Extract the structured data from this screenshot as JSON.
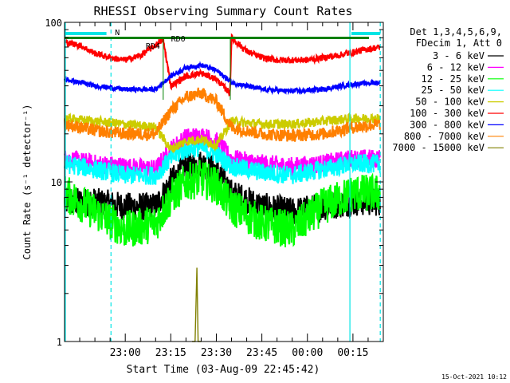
{
  "chart_data": {
    "type": "line",
    "title": "RHESSI Observing Summary Count Rates",
    "xlabel": "Start Time (03-Aug-09 22:45:42)",
    "ylabel": "Count Rate (s⁻¹ detector⁻¹)",
    "yscale": "log",
    "ylim": [
      1,
      100
    ],
    "xlim": [
      -10,
      95
    ],
    "x_units": "minutes after 22:50",
    "y_ticks": [
      1,
      10,
      100
    ],
    "y_tick_labels": [
      "1",
      "10",
      "100"
    ],
    "x_ticks": [
      10,
      25,
      40,
      55,
      70,
      85
    ],
    "x_tick_labels": [
      "23:00",
      "23:15",
      "23:30",
      "23:45",
      "00:00",
      "00:15"
    ],
    "legend_header": [
      "Det 1,3,4,5,6,9,",
      "FDecim 1, Att 0"
    ],
    "annotations": {
      "top_bar_label": "N",
      "rd_labels": [
        "RD4",
        "RD0"
      ]
    },
    "footer": "15-Oct-2021 10:12",
    "series": [
      {
        "name": "3 - 6 keV",
        "color": "#000000",
        "x": [
          -10,
          0,
          10,
          20,
          25,
          30,
          35,
          40,
          45,
          55,
          65,
          75,
          85,
          94
        ],
        "y": [
          7.5,
          7.5,
          7,
          7,
          10,
          12.5,
          13,
          12,
          8.5,
          7,
          6.5,
          7,
          7.5,
          7.5
        ]
      },
      {
        "name": "6 - 12 keV",
        "color": "#ff00ff",
        "x": [
          -10,
          0,
          10,
          20,
          25,
          30,
          35,
          40,
          45,
          55,
          65,
          75,
          85,
          94
        ],
        "y": [
          14,
          13,
          12.5,
          12,
          16,
          19,
          19.5,
          18,
          14,
          13,
          12.5,
          13,
          14,
          14
        ]
      },
      {
        "name": "12 - 25 keV",
        "color": "#00ff00",
        "x": [
          -10,
          0,
          10,
          20,
          25,
          30,
          35,
          40,
          45,
          55,
          65,
          75,
          85,
          94
        ],
        "y": [
          8.5,
          6.5,
          5,
          5.5,
          8,
          10,
          10.5,
          9.5,
          7,
          5.5,
          5,
          7,
          8.5,
          8.5
        ]
      },
      {
        "name": "25 - 50 keV",
        "color": "#00ffff",
        "x": [
          -10,
          0,
          10,
          20,
          25,
          30,
          35,
          40,
          45,
          55,
          65,
          75,
          85,
          94
        ],
        "y": [
          13,
          12,
          11,
          11,
          14,
          16,
          16.5,
          15,
          12.5,
          11.5,
          11,
          12,
          13,
          13
        ]
      },
      {
        "name": "50 - 100 keV",
        "color": "#cccc00",
        "x": [
          -10,
          0,
          10,
          20,
          25,
          30,
          35,
          40,
          45,
          55,
          65,
          75,
          85,
          94
        ],
        "y": [
          25,
          24,
          23,
          22,
          16,
          18,
          18.5,
          17,
          24,
          23,
          23,
          24,
          25,
          25
        ]
      },
      {
        "name": "100 - 300 keV",
        "color": "#ff0000",
        "x": [
          -10,
          -5,
          0,
          5,
          10,
          15,
          20,
          22.5,
          25,
          30,
          35,
          40,
          44.5,
          45,
          50,
          55,
          60,
          70,
          80,
          90,
          94
        ],
        "y": [
          75,
          72,
          64,
          60,
          58,
          62,
          72,
          78,
          40,
          46,
          48,
          44,
          36,
          80,
          66,
          60,
          58,
          58,
          62,
          68,
          70
        ]
      },
      {
        "name": "300 - 800 keV",
        "color": "#0000ff",
        "x": [
          -10,
          0,
          10,
          20,
          25,
          30,
          35,
          40,
          45,
          55,
          65,
          75,
          85,
          94
        ],
        "y": [
          44,
          40,
          38,
          38,
          46,
          52,
          54,
          50,
          42,
          38,
          37,
          38,
          41,
          42
        ]
      },
      {
        "name": "800 - 7000 keV",
        "color": "#ff8000",
        "x": [
          -10,
          0,
          10,
          20,
          25,
          30,
          35,
          40,
          45,
          55,
          65,
          75,
          85,
          94
        ],
        "y": [
          23,
          21,
          20,
          20,
          28,
          34,
          36,
          32,
          22,
          20,
          19.5,
          20,
          22,
          23
        ]
      },
      {
        "name": "7000 - 15000 keV",
        "color": "#808000",
        "x": [
          32,
          33,
          33.6,
          34,
          35
        ],
        "y": [
          1,
          1,
          2.9,
          1,
          1
        ]
      }
    ]
  }
}
